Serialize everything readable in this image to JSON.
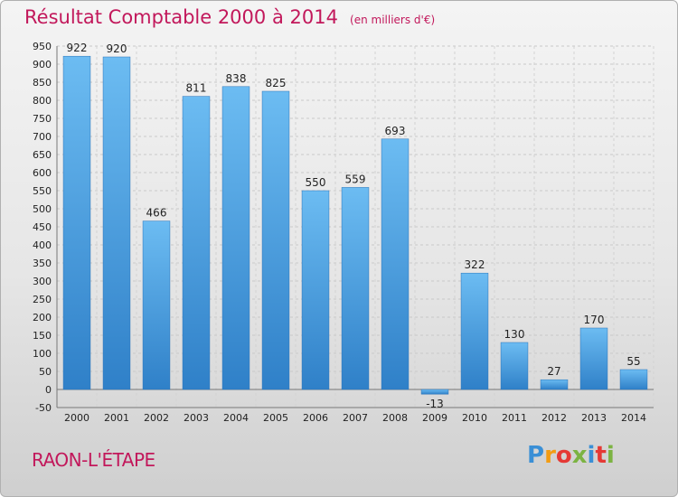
{
  "header": {
    "title": "Résultat Comptable 2000 à 2014",
    "subtitle": "(en milliers d'€)"
  },
  "footer": {
    "town": "RAON-L'ÉTAPE",
    "logo_letters": [
      "P",
      "r",
      "o",
      "x",
      "i",
      "t",
      "i"
    ],
    "logo_colors": [
      "#3a8fd6",
      "#f39c12",
      "#e53935",
      "#7cb342",
      "#3a8fd6",
      "#e53935",
      "#7cb342"
    ]
  },
  "chart_data": {
    "type": "bar",
    "title": "Résultat Comptable 2000 à 2014",
    "subtitle": "(en milliers d'€)",
    "categories": [
      "2000",
      "2001",
      "2002",
      "2003",
      "2004",
      "2005",
      "2006",
      "2007",
      "2008",
      "2009",
      "2010",
      "2011",
      "2012",
      "2013",
      "2014"
    ],
    "values": [
      922,
      920,
      466,
      811,
      838,
      825,
      550,
      559,
      693,
      -13,
      322,
      130,
      27,
      170,
      55
    ],
    "value_labels": [
      "922",
      "920",
      "466",
      "811",
      "838",
      "825",
      "550",
      "559",
      "693",
      "-13",
      "322",
      "130",
      "27",
      "170",
      "55"
    ],
    "ylim": [
      -50,
      950
    ],
    "yticks": [
      -50,
      0,
      50,
      100,
      150,
      200,
      250,
      300,
      350,
      400,
      450,
      500,
      550,
      600,
      650,
      700,
      750,
      800,
      850,
      900,
      950
    ],
    "grid": true,
    "bar_color": "#3a8fd6",
    "bar_color_light": "#62b4ee",
    "legend": "none"
  }
}
